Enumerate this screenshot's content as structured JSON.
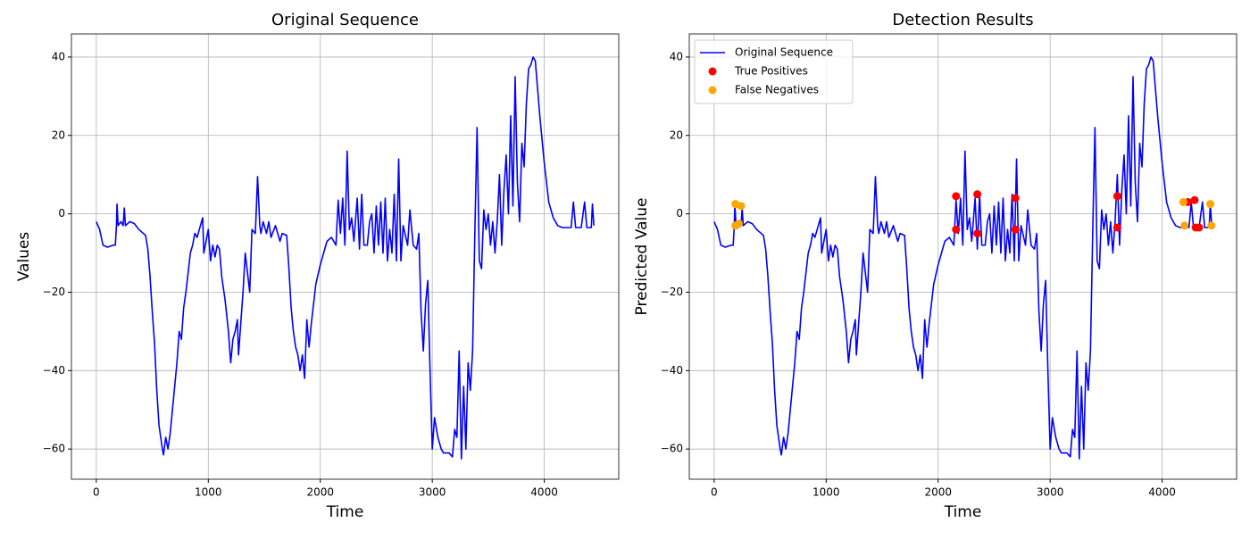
{
  "chart_data": [
    {
      "type": "line",
      "title": "Original Sequence",
      "x_label": "Time",
      "y_label": "Values",
      "grid": true,
      "xlim": [
        -222,
        4665
      ],
      "ylim": [
        -67.7,
        45.9
      ],
      "xticks": [
        0,
        1000,
        2000,
        3000,
        4000
      ],
      "yticks": [
        {
          "value": -60,
          "label": "−60"
        },
        {
          "value": -40,
          "label": "−40"
        },
        {
          "value": -20,
          "label": "−20"
        },
        0,
        20,
        40
      ],
      "x": [
        0,
        30,
        60,
        100,
        150,
        170,
        180,
        185,
        195,
        220,
        240,
        250,
        260,
        300,
        340,
        380,
        420,
        440,
        460,
        480,
        500,
        520,
        540,
        560,
        590,
        600,
        620,
        640,
        660,
        680,
        700,
        720,
        740,
        760,
        780,
        800,
        820,
        840,
        860,
        880,
        900,
        920,
        950,
        960,
        1000,
        1020,
        1040,
        1060,
        1080,
        1100,
        1120,
        1150,
        1180,
        1200,
        1220,
        1240,
        1260,
        1270,
        1290,
        1310,
        1330,
        1350,
        1370,
        1390,
        1420,
        1430,
        1440,
        1460,
        1470,
        1490,
        1520,
        1540,
        1560,
        1600,
        1640,
        1660,
        1700,
        1720,
        1740,
        1760,
        1780,
        1800,
        1820,
        1840,
        1860,
        1880,
        1900,
        1920,
        1940,
        1960,
        2000,
        2040,
        2060,
        2100,
        2140,
        2160,
        2180,
        2200,
        2220,
        2240,
        2260,
        2280,
        2300,
        2330,
        2350,
        2370,
        2390,
        2420,
        2440,
        2460,
        2480,
        2500,
        2520,
        2540,
        2560,
        2580,
        2600,
        2620,
        2640,
        2660,
        2680,
        2700,
        2720,
        2740,
        2780,
        2800,
        2830,
        2860,
        2880,
        2900,
        2920,
        2940,
        2960,
        2980,
        3000,
        3020,
        3050,
        3080,
        3100,
        3130,
        3150,
        3180,
        3200,
        3220,
        3240,
        3260,
        3280,
        3300,
        3320,
        3340,
        3360,
        3380,
        3400,
        3420,
        3440,
        3460,
        3480,
        3500,
        3520,
        3540,
        3560,
        3580,
        3600,
        3620,
        3640,
        3660,
        3680,
        3700,
        3720,
        3740,
        3760,
        3780,
        3800,
        3820,
        3840,
        3860,
        3880,
        3900,
        3920,
        3960,
        4000,
        4040,
        4080,
        4120,
        4160,
        4200,
        4240,
        4260,
        4280,
        4330,
        4360,
        4380,
        4420,
        4430,
        4443
      ],
      "series": [
        {
          "color": "#0000ff",
          "values": [
            -2,
            -4,
            -8,
            -8.5,
            -8,
            -8,
            -3,
            2.5,
            -3,
            -2,
            -3,
            1.5,
            -3,
            -2,
            -2.5,
            -4,
            -5,
            -5.5,
            -9,
            -16,
            -25,
            -33,
            -45,
            -54,
            -60,
            -61.5,
            -57,
            -60,
            -56,
            -50,
            -44,
            -38,
            -30,
            -32,
            -24,
            -20,
            -15,
            -10,
            -8,
            -5,
            -6,
            -4,
            -1,
            -10,
            -4,
            -12,
            -8,
            -11,
            -8,
            -9,
            -16,
            -22,
            -30,
            -38,
            -32,
            -30,
            -27,
            -36,
            -28,
            -20,
            -10,
            -15,
            -20,
            -4,
            -5,
            2,
            9.5,
            -3,
            -5,
            -2,
            -5,
            -2,
            -6,
            -3,
            -7,
            -5,
            -5.5,
            -14,
            -24,
            -30,
            -34,
            -36,
            -40,
            -36,
            -42,
            -27,
            -34,
            -28,
            -23,
            -18,
            -13,
            -9,
            -7,
            -6,
            -8,
            3.5,
            -5,
            4,
            -8,
            16,
            -4,
            -1,
            -7,
            4,
            -9,
            5,
            -8,
            -8,
            -2,
            0,
            -10,
            2,
            -8,
            3,
            -10,
            4,
            -12,
            -4,
            -10,
            5,
            -12,
            14,
            -12,
            -3,
            -8,
            1,
            -8,
            -9,
            -5,
            -25,
            -35,
            -23,
            -17,
            -40,
            -60,
            -52,
            -57,
            -60,
            -61,
            -61,
            -61,
            -62,
            -55,
            -57,
            -35,
            -62.5,
            -44,
            -60,
            -38,
            -45,
            -35,
            -5,
            22,
            -12,
            -14,
            1,
            -4,
            0,
            -8,
            -2,
            -10,
            -2,
            10,
            -8,
            6,
            15,
            0,
            25,
            2,
            35,
            8,
            -2,
            18,
            12,
            28,
            37,
            38,
            40,
            39,
            25,
            13,
            3,
            -1,
            -3,
            -3.5,
            -3.5,
            -3.5,
            3,
            -3.5,
            -3.5,
            3,
            -3.5,
            -3.5,
            2.5,
            -3
          ]
        }
      ]
    },
    {
      "type": "line",
      "title": "Detection Results",
      "x_label": "Time",
      "y_label": "Predicted Value",
      "grid": true,
      "legend": "upper left",
      "xlim": [
        -222,
        4665
      ],
      "ylim": [
        -67.7,
        45.9
      ],
      "xticks": [
        0,
        1000,
        2000,
        3000,
        4000
      ],
      "yticks": [
        {
          "value": -60,
          "label": "−60"
        },
        {
          "value": -40,
          "label": "−40"
        },
        {
          "value": -20,
          "label": "−20"
        },
        0,
        20,
        40
      ],
      "x": [
        0,
        30,
        60,
        100,
        150,
        170,
        180,
        185,
        195,
        220,
        240,
        250,
        260,
        300,
        340,
        380,
        420,
        440,
        460,
        480,
        500,
        520,
        540,
        560,
        590,
        600,
        620,
        640,
        660,
        680,
        700,
        720,
        740,
        760,
        780,
        800,
        820,
        840,
        860,
        880,
        900,
        920,
        950,
        960,
        1000,
        1020,
        1040,
        1060,
        1080,
        1100,
        1120,
        1150,
        1180,
        1200,
        1220,
        1240,
        1260,
        1270,
        1290,
        1310,
        1330,
        1350,
        1370,
        1390,
        1420,
        1430,
        1440,
        1460,
        1470,
        1490,
        1520,
        1540,
        1560,
        1600,
        1640,
        1660,
        1700,
        1720,
        1740,
        1760,
        1780,
        1800,
        1820,
        1840,
        1860,
        1880,
        1900,
        1920,
        1940,
        1960,
        2000,
        2040,
        2060,
        2100,
        2140,
        2160,
        2180,
        2200,
        2220,
        2240,
        2260,
        2280,
        2300,
        2330,
        2350,
        2370,
        2390,
        2420,
        2440,
        2460,
        2480,
        2500,
        2520,
        2540,
        2560,
        2580,
        2600,
        2620,
        2640,
        2660,
        2680,
        2700,
        2720,
        2740,
        2780,
        2800,
        2830,
        2860,
        2880,
        2900,
        2920,
        2940,
        2960,
        2980,
        3000,
        3020,
        3050,
        3080,
        3100,
        3130,
        3150,
        3180,
        3200,
        3220,
        3240,
        3260,
        3280,
        3300,
        3320,
        3340,
        3360,
        3380,
        3400,
        3420,
        3440,
        3460,
        3480,
        3500,
        3520,
        3540,
        3560,
        3580,
        3600,
        3620,
        3640,
        3660,
        3680,
        3700,
        3720,
        3740,
        3760,
        3780,
        3800,
        3820,
        3840,
        3860,
        3880,
        3900,
        3920,
        3960,
        4000,
        4040,
        4080,
        4120,
        4160,
        4200,
        4240,
        4260,
        4280,
        4330,
        4360,
        4380,
        4420,
        4430,
        4443
      ],
      "series": [
        {
          "name": "Original Sequence",
          "color": "#0000ff",
          "values": [
            -2,
            -4,
            -8,
            -8.5,
            -8,
            -8,
            -3,
            2.5,
            -3,
            -2,
            -3,
            1.5,
            -3,
            -2,
            -2.5,
            -4,
            -5,
            -5.5,
            -9,
            -16,
            -25,
            -33,
            -45,
            -54,
            -60,
            -61.5,
            -57,
            -60,
            -56,
            -50,
            -44,
            -38,
            -30,
            -32,
            -24,
            -20,
            -15,
            -10,
            -8,
            -5,
            -6,
            -4,
            -1,
            -10,
            -4,
            -12,
            -8,
            -11,
            -8,
            -9,
            -16,
            -22,
            -30,
            -38,
            -32,
            -30,
            -27,
            -36,
            -28,
            -20,
            -10,
            -15,
            -20,
            -4,
            -5,
            2,
            9.5,
            -3,
            -5,
            -2,
            -5,
            -2,
            -6,
            -3,
            -7,
            -5,
            -5.5,
            -14,
            -24,
            -30,
            -34,
            -36,
            -40,
            -36,
            -42,
            -27,
            -34,
            -28,
            -23,
            -18,
            -13,
            -9,
            -7,
            -6,
            -8,
            3.5,
            -5,
            4,
            -8,
            16,
            -4,
            -1,
            -7,
            4,
            -9,
            5,
            -8,
            -8,
            -2,
            0,
            -10,
            2,
            -8,
            3,
            -10,
            4,
            -12,
            -4,
            -10,
            5,
            -12,
            14,
            -12,
            -3,
            -8,
            1,
            -8,
            -9,
            -5,
            -25,
            -35,
            -23,
            -17,
            -40,
            -60,
            -52,
            -57,
            -60,
            -61,
            -61,
            -61,
            -62,
            -55,
            -57,
            -35,
            -62.5,
            -44,
            -60,
            -38,
            -45,
            -35,
            -5,
            22,
            -12,
            -14,
            1,
            -4,
            0,
            -8,
            -2,
            -10,
            -2,
            10,
            -8,
            6,
            15,
            0,
            25,
            2,
            35,
            8,
            -2,
            18,
            12,
            28,
            37,
            38,
            40,
            39,
            25,
            13,
            3,
            -1,
            -3,
            -3.5,
            -3.5,
            -3.5,
            3,
            -3.5,
            -3.5,
            3,
            -3.5,
            -3.5,
            2.5,
            -3
          ]
        },
        {
          "name": "True Positives",
          "type": "scatter",
          "color": "#ff0000",
          "x": [
            2160,
            2160,
            2350,
            2350,
            2690,
            2690,
            3600,
            3600,
            4230,
            4290,
            4300,
            4330
          ],
          "values": [
            4.5,
            -4,
            5,
            -5,
            4,
            -4,
            4.5,
            -3.5,
            3,
            3.5,
            -3.5,
            -3.5
          ]
        },
        {
          "name": "False Negatives",
          "type": "scatter",
          "color": "#ffa500",
          "x": [
            190,
            190,
            220,
            240,
            4190,
            4200,
            4430,
            4440
          ],
          "values": [
            2.5,
            -3,
            -2.5,
            2,
            3,
            -3,
            2.5,
            -3
          ]
        }
      ]
    }
  ]
}
